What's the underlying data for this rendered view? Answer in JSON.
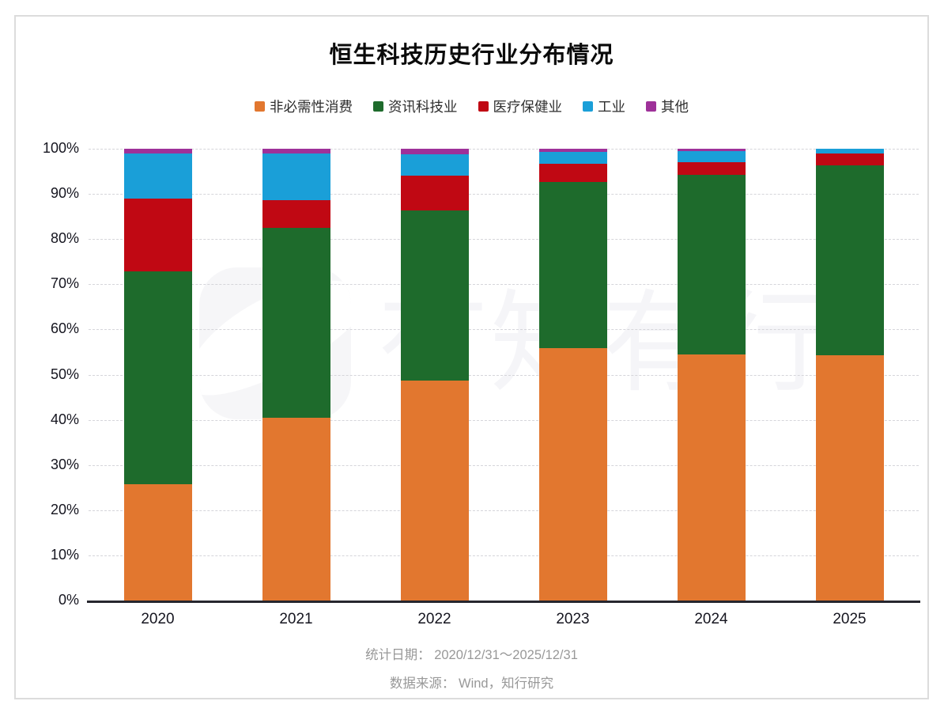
{
  "title": "恒生科技历史行业分布情况",
  "legend": [
    {
      "label": "非必需性消费",
      "color": "#e2772f"
    },
    {
      "label": "资讯科技业",
      "color": "#1e6b2c"
    },
    {
      "label": "医疗保健业",
      "color": "#c00813"
    },
    {
      "label": "工业",
      "color": "#1a9fd8"
    },
    {
      "label": "其他",
      "color": "#9e3199"
    }
  ],
  "watermark": {
    "text": "有知有行"
  },
  "footer": {
    "line1": "统计日期： 2020/12/31～2025/12/31",
    "line2": "数据来源： Wind，知行研究"
  },
  "chart_data": {
    "type": "bar",
    "stacked": true,
    "unit": "percent",
    "title": "恒生科技历史行业分布情况",
    "categories": [
      "2020",
      "2021",
      "2022",
      "2023",
      "2024",
      "2025"
    ],
    "series": [
      {
        "name": "非必需性消费",
        "color": "#e2772f",
        "values": [
          25.8,
          40.5,
          48.7,
          55.8,
          54.5,
          54.3
        ]
      },
      {
        "name": "资讯科技业",
        "color": "#1e6b2c",
        "values": [
          47.0,
          42.0,
          37.7,
          36.8,
          39.8,
          42.0
        ]
      },
      {
        "name": "医疗保健业",
        "color": "#c00813",
        "values": [
          16.1,
          6.2,
          7.7,
          4.0,
          2.8,
          2.6
        ]
      },
      {
        "name": "工业",
        "color": "#1a9fd8",
        "values": [
          10.1,
          10.2,
          4.7,
          2.7,
          2.3,
          1.1
        ]
      },
      {
        "name": "其他",
        "color": "#9e3199",
        "values": [
          1.0,
          1.1,
          1.2,
          0.7,
          0.6,
          0.0
        ]
      }
    ],
    "ylim": [
      0,
      100
    ],
    "yticks": [
      "100%",
      "90%",
      "80%",
      "70%",
      "60%",
      "50%",
      "40%",
      "30%",
      "20%",
      "10%",
      "0%"
    ],
    "grid": "horizontal-dashed",
    "legend_position": "top"
  }
}
